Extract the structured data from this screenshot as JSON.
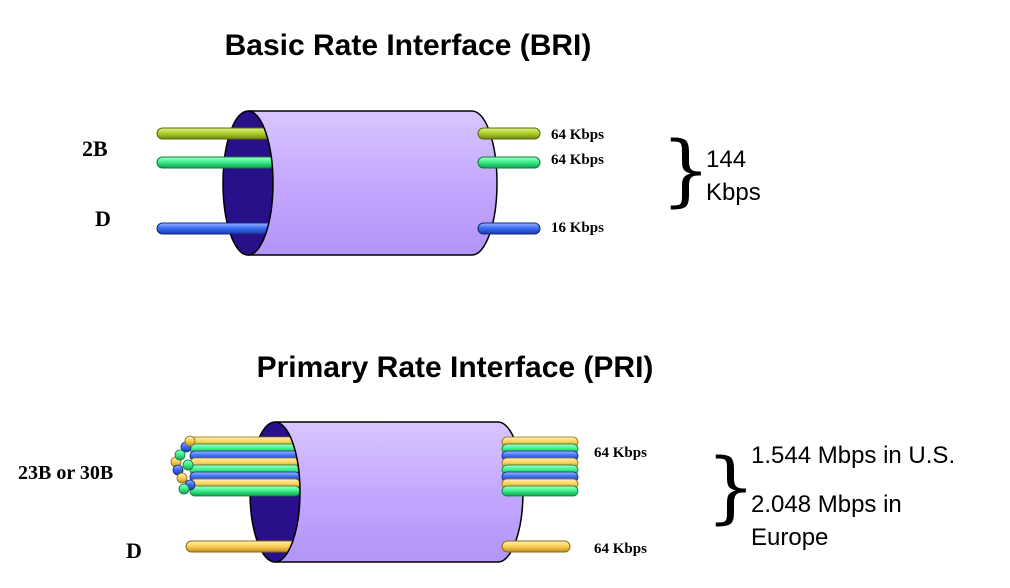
{
  "bri": {
    "title": "Basic Rate Interface (BRI)",
    "label_2b": "2B",
    "label_d": "D",
    "rate_b1": "64 Kbps",
    "rate_b2": "64 Kbps",
    "rate_d": "16 Kbps",
    "total_value": "144",
    "total_unit": "Kbps"
  },
  "pri": {
    "title": "Primary Rate Interface (PRI)",
    "label_b": "23B or 30B",
    "label_d": "D",
    "rate_b": "64 Kbps",
    "rate_d": "64 Kbps",
    "total_us": "1.544 Mbps in U.S.",
    "total_eu_line1": "2.048 Mbps in",
    "total_eu_line2": "Europe"
  },
  "colors": {
    "cylinder_body": "#c4a8ff",
    "cylinder_inner": "#2a0f8a",
    "wire_olive": "#b4d22e",
    "wire_green": "#3ef08c",
    "wire_blue": "#3c6ef5",
    "wire_yellow": "#ffd25a"
  }
}
